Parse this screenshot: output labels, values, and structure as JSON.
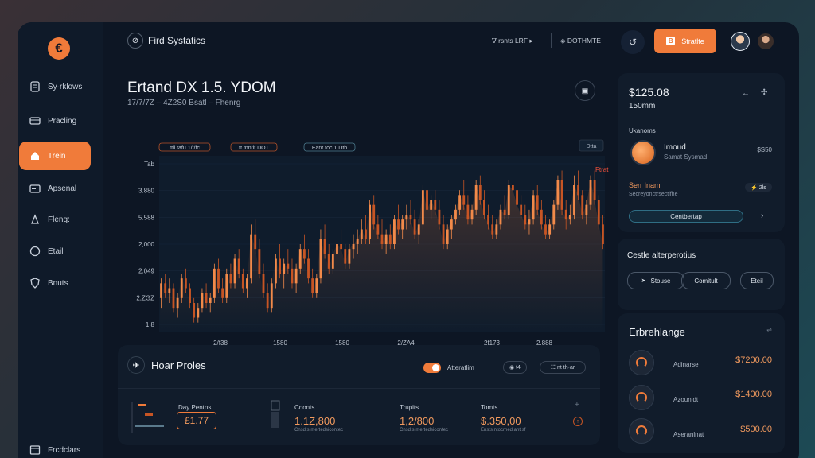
{
  "colors": {
    "accent": "#f07b3a",
    "background": "#0d1624",
    "panel": "#111c2b",
    "candle_up": "#f28a4a",
    "candle_down": "#c75524"
  },
  "sidebar": {
    "logo": "€",
    "items": [
      {
        "label": "Sy·rklows",
        "icon": "document-icon"
      },
      {
        "label": "Pracling",
        "icon": "card-icon"
      },
      {
        "label": "Trein",
        "icon": "home-icon",
        "active": true
      },
      {
        "label": "Apsenal",
        "icon": "wallet-icon"
      },
      {
        "label": "Fleng:",
        "icon": "lock-icon"
      },
      {
        "label": "Etail",
        "icon": "chat-icon"
      },
      {
        "label": "Bnuts",
        "icon": "shield-icon"
      }
    ],
    "footer_label": "Frcdclars"
  },
  "header": {
    "brand": "Fird Systatics",
    "link1": "ᐁ rsnts LRF ▸",
    "link2": "◈ DOTHMTE",
    "cta": "Stratlte"
  },
  "chart_panel": {
    "title": "Ertand DX 1.5. YDOM",
    "subtitle": "17/7/7Z – 4Z2S0 Bsatl – Fhenrg",
    "tags": [
      "ttil tafu 1/t/fc",
      "tt tnntlt DOT",
      "Eant toc 1 Dtb"
    ],
    "indicator": "Dtta",
    "price_label": "Ftrat"
  },
  "chart_data": {
    "type": "candlestick",
    "y_tick_labels": [
      "Tab",
      "3.880",
      "5.588",
      "2,000",
      "2.049",
      "2,ZGZ",
      "1.8"
    ],
    "x_tick_labels": [
      "2/f38",
      "1580",
      "1580",
      "2/ZA4",
      "2f173",
      "2.888"
    ],
    "candles": [
      [
        1.9,
        2.3,
        1.7,
        2.2
      ],
      [
        2.2,
        2.4,
        1.9,
        2.0
      ],
      [
        2.0,
        2.3,
        1.8,
        2.1
      ],
      [
        2.1,
        2.2,
        1.6,
        1.7
      ],
      [
        1.7,
        2.0,
        1.5,
        1.9
      ],
      [
        1.9,
        2.4,
        1.8,
        2.3
      ],
      [
        2.3,
        2.5,
        2.0,
        2.1
      ],
      [
        2.1,
        2.2,
        1.7,
        1.8
      ],
      [
        1.8,
        1.9,
        1.4,
        1.5
      ],
      [
        1.5,
        1.8,
        1.4,
        1.7
      ],
      [
        1.7,
        2.1,
        1.6,
        2.0
      ],
      [
        2.0,
        2.2,
        1.7,
        1.8
      ],
      [
        1.8,
        2.0,
        1.6,
        1.9
      ],
      [
        1.9,
        2.6,
        1.8,
        2.5
      ],
      [
        2.5,
        2.7,
        2.0,
        2.1
      ],
      [
        2.1,
        2.3,
        1.8,
        1.9
      ],
      [
        1.9,
        2.5,
        1.8,
        2.4
      ],
      [
        2.4,
        2.6,
        2.1,
        2.2
      ],
      [
        2.2,
        2.8,
        2.1,
        2.7
      ],
      [
        2.7,
        2.9,
        2.3,
        2.4
      ],
      [
        2.4,
        2.5,
        2.0,
        2.1
      ],
      [
        2.1,
        2.4,
        1.9,
        2.3
      ],
      [
        2.3,
        3.4,
        2.2,
        3.2
      ],
      [
        3.2,
        3.5,
        2.8,
        2.9
      ],
      [
        2.9,
        3.1,
        2.3,
        2.4
      ],
      [
        2.4,
        2.6,
        1.9,
        2.0
      ],
      [
        2.0,
        2.2,
        1.6,
        1.7
      ],
      [
        1.7,
        2.3,
        1.6,
        2.2
      ],
      [
        2.2,
        2.8,
        2.1,
        2.7
      ],
      [
        2.7,
        3.0,
        2.3,
        2.4
      ],
      [
        2.4,
        2.7,
        2.1,
        2.6
      ],
      [
        2.6,
        2.9,
        2.4,
        2.5
      ],
      [
        2.5,
        2.7,
        2.1,
        2.2
      ],
      [
        2.2,
        2.6,
        2.0,
        2.5
      ],
      [
        2.5,
        3.0,
        2.4,
        2.9
      ],
      [
        2.9,
        3.2,
        2.6,
        2.7
      ],
      [
        2.7,
        2.9,
        2.2,
        2.3
      ],
      [
        2.3,
        2.5,
        1.9,
        2.0
      ],
      [
        2.0,
        2.4,
        1.9,
        2.3
      ],
      [
        2.3,
        3.3,
        2.2,
        3.1
      ],
      [
        3.1,
        3.4,
        2.7,
        2.8
      ],
      [
        2.8,
        3.0,
        2.4,
        2.5
      ],
      [
        2.5,
        2.9,
        2.4,
        2.8
      ],
      [
        2.8,
        3.2,
        2.6,
        3.0
      ],
      [
        3.0,
        3.3,
        2.8,
        2.9
      ],
      [
        2.9,
        3.0,
        2.5,
        2.6
      ],
      [
        2.6,
        3.0,
        2.5,
        2.9
      ],
      [
        2.9,
        3.2,
        2.7,
        3.0
      ],
      [
        3.0,
        3.3,
        2.8,
        3.1
      ],
      [
        3.1,
        3.5,
        3.0,
        3.3
      ],
      [
        3.3,
        3.6,
        3.0,
        3.1
      ],
      [
        3.1,
        3.9,
        3.0,
        3.8
      ],
      [
        3.8,
        4.0,
        3.3,
        3.4
      ],
      [
        3.4,
        3.6,
        3.1,
        3.2
      ],
      [
        3.2,
        3.5,
        2.9,
        3.0
      ],
      [
        3.0,
        3.3,
        2.8,
        3.2
      ],
      [
        3.2,
        3.4,
        2.9,
        3.0
      ],
      [
        3.0,
        3.6,
        2.9,
        3.5
      ],
      [
        3.5,
        3.8,
        3.2,
        3.3
      ],
      [
        3.3,
        3.6,
        3.1,
        3.5
      ],
      [
        3.5,
        3.8,
        3.3,
        3.6
      ],
      [
        3.6,
        3.9,
        3.4,
        3.5
      ],
      [
        3.5,
        3.7,
        3.1,
        3.2
      ],
      [
        3.2,
        3.5,
        3.0,
        3.4
      ],
      [
        3.4,
        4.2,
        3.3,
        4.1
      ],
      [
        4.1,
        4.3,
        3.6,
        3.7
      ],
      [
        3.7,
        4.0,
        3.5,
        3.9
      ],
      [
        3.9,
        4.1,
        3.6,
        3.7
      ],
      [
        3.7,
        3.9,
        3.3,
        3.4
      ],
      [
        3.4,
        3.6,
        2.9,
        3.0
      ],
      [
        3.0,
        3.4,
        2.9,
        3.3
      ],
      [
        3.3,
        3.6,
        3.1,
        3.5
      ],
      [
        3.5,
        3.8,
        3.4,
        3.7
      ],
      [
        3.7,
        4.1,
        3.6,
        4.0
      ],
      [
        4.0,
        4.3,
        3.7,
        3.8
      ],
      [
        3.8,
        4.0,
        3.4,
        3.5
      ],
      [
        3.5,
        3.8,
        3.4,
        3.7
      ],
      [
        3.7,
        4.3,
        3.6,
        4.2
      ],
      [
        4.2,
        4.4,
        3.8,
        3.9
      ],
      [
        3.9,
        4.1,
        3.5,
        3.6
      ],
      [
        3.6,
        3.8,
        3.3,
        3.4
      ],
      [
        3.4,
        3.6,
        3.1,
        3.2
      ],
      [
        3.2,
        3.5,
        3.1,
        3.4
      ],
      [
        3.4,
        3.8,
        3.3,
        3.7
      ],
      [
        3.7,
        4.0,
        3.5,
        3.6
      ],
      [
        3.6,
        4.3,
        3.5,
        4.2
      ],
      [
        4.2,
        4.5,
        4.0,
        4.1
      ],
      [
        4.1,
        4.3,
        3.7,
        3.8
      ],
      [
        3.8,
        4.0,
        3.5,
        3.6
      ],
      [
        3.6,
        3.8,
        3.3,
        3.4
      ],
      [
        3.4,
        3.7,
        3.2,
        3.5
      ],
      [
        3.5,
        4.1,
        3.4,
        4.0
      ],
      [
        4.0,
        4.2,
        3.6,
        3.7
      ],
      [
        3.7,
        3.9,
        3.3,
        3.4
      ],
      [
        3.4,
        3.6,
        3.1,
        3.2
      ],
      [
        3.2,
        3.5,
        3.1,
        3.4
      ],
      [
        3.4,
        3.9,
        3.3,
        3.8
      ],
      [
        3.8,
        4.4,
        3.7,
        4.3
      ],
      [
        4.3,
        4.5,
        3.6,
        3.7
      ],
      [
        3.7,
        3.9,
        3.3,
        3.5
      ],
      [
        3.5,
        3.8,
        3.4,
        3.6
      ],
      [
        3.6,
        4.4,
        3.5,
        4.2
      ],
      [
        4.2,
        4.5,
        3.9,
        4.0
      ],
      [
        4.0,
        4.1,
        3.5,
        3.6
      ],
      [
        3.6,
        3.9,
        3.4,
        3.8
      ],
      [
        3.8,
        4.4,
        3.7,
        4.3
      ],
      [
        4.3,
        4.5,
        3.8,
        3.9
      ],
      [
        3.9,
        4.0,
        3.3,
        3.4
      ],
      [
        3.4,
        3.6,
        2.9,
        3.0
      ]
    ],
    "ylim": [
      1.2,
      4.8
    ],
    "grid": true
  },
  "bottom_panel": {
    "title": "Hoar Proles",
    "toggle_label": "Atteratlim",
    "chip1": "◉ t4",
    "chip2": "☷ nt th·ar",
    "stats": [
      {
        "label": "Day Pentns",
        "value": "£1.77",
        "sub": ""
      },
      {
        "label": "Cnonts",
        "value": "1.1Z,800",
        "sub": "Cnsd:s.mertedsicontec"
      },
      {
        "label": "Trupits",
        "value": "1,2/800",
        "sub": "Cnsd:s.mertedsicontec"
      },
      {
        "label": "Tomts",
        "value": "$.350,00",
        "sub": "Ens:s.ntocrned.ant.sf"
      }
    ]
  },
  "price_card": {
    "price": "$125.08",
    "sub": "150mm",
    "section_label": "Ukanoms",
    "coin_title": "Imoud",
    "coin_sub": "Samat Sysmad",
    "coin_value": "$S50",
    "alert_title": "Serr Inam",
    "alert_sub": "Secreyonctrsectifhe",
    "alert_chip": "⚡ 2ls",
    "action": "Centbertap"
  },
  "options_card": {
    "title": "Cestle alterperotius",
    "btn1": "Stouse",
    "btn2": "Comitult",
    "btn3": "Eteil"
  },
  "exchange_card": {
    "title": "Erbrehlange",
    "rows": [
      {
        "name": "Adinarse",
        "value": "$7200.00"
      },
      {
        "name": "Azounidt",
        "value": "$1400.00"
      },
      {
        "name": "Aseranlnat",
        "value": "$500.00"
      }
    ]
  }
}
